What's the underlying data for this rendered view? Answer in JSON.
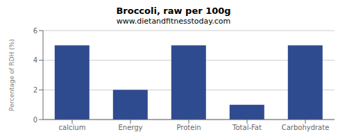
{
  "chart_data": {
    "type": "bar",
    "title": "Broccoli, raw per 100g",
    "subtitle": "www.dietandfitnesstoday.com",
    "categories": [
      "calcium",
      "Energy",
      "Protein",
      "Total-Fat",
      "Carbohydrate"
    ],
    "values": [
      5.0,
      2.0,
      5.0,
      1.0,
      5.0
    ],
    "color": "#2e4b8f",
    "ylabel": "Percentage of RDH (%)",
    "ylim": [
      0,
      6
    ],
    "yticks": [
      0,
      2,
      4,
      6
    ],
    "grid": true
  }
}
